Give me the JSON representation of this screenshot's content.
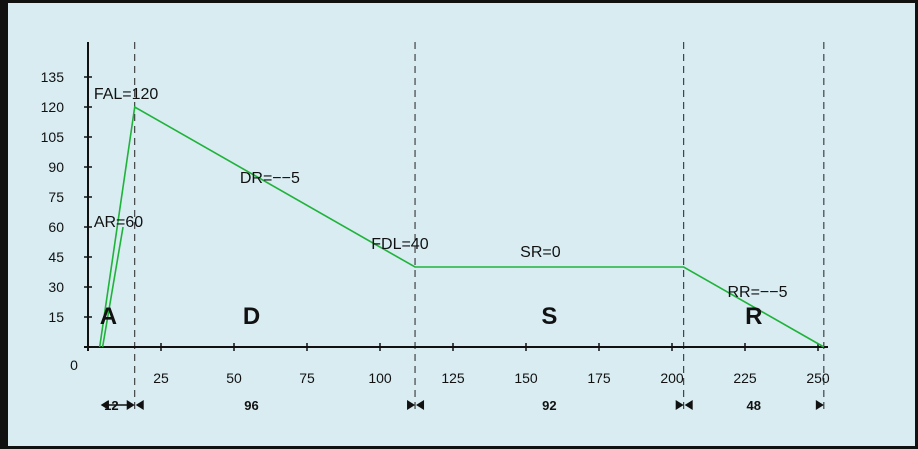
{
  "chart_data": {
    "type": "line",
    "xlim": [
      0,
      250
    ],
    "ylim": [
      0,
      135
    ],
    "x_ticks": [
      "0",
      "25",
      "50",
      "75",
      "100",
      "125",
      "150",
      "175",
      "200",
      "225",
      "250"
    ],
    "y_ticks": [
      "15",
      "30",
      "45",
      "60",
      "75",
      "90",
      "105",
      "120",
      "135"
    ],
    "series": [
      {
        "x": [
          4,
          16,
          112,
          112,
          204,
          252
        ],
        "y": [
          0,
          120,
          40,
          40,
          40,
          0
        ],
        "color": "#1fb33a"
      },
      {
        "x": [
          5,
          12
        ],
        "y": [
          0,
          60
        ],
        "color": "#1fb33a"
      }
    ],
    "phase_boundaries": [
      16,
      112,
      204,
      252
    ],
    "phases": [
      {
        "letter": "A",
        "x": 7
      },
      {
        "letter": "D",
        "x": 56
      },
      {
        "letter": "S",
        "x": 158
      },
      {
        "letter": "R",
        "x": 228
      }
    ],
    "durations": [
      {
        "label": "12",
        "x": 8
      },
      {
        "label": "96",
        "x": 56
      },
      {
        "label": "92",
        "x": 158
      },
      {
        "label": "48",
        "x": 228
      }
    ],
    "annotations": [
      {
        "text": "FAL=120",
        "x": 2,
        "y": 124
      },
      {
        "text": "AR=60",
        "x": 2,
        "y": 60
      },
      {
        "text": "DR=−−5",
        "x": 52,
        "y": 82
      },
      {
        "text": "FDL=40",
        "x": 97,
        "y": 49
      },
      {
        "text": "SR=0",
        "x": 148,
        "y": 45
      },
      {
        "text": "RR=−−5",
        "x": 219,
        "y": 25
      }
    ]
  }
}
